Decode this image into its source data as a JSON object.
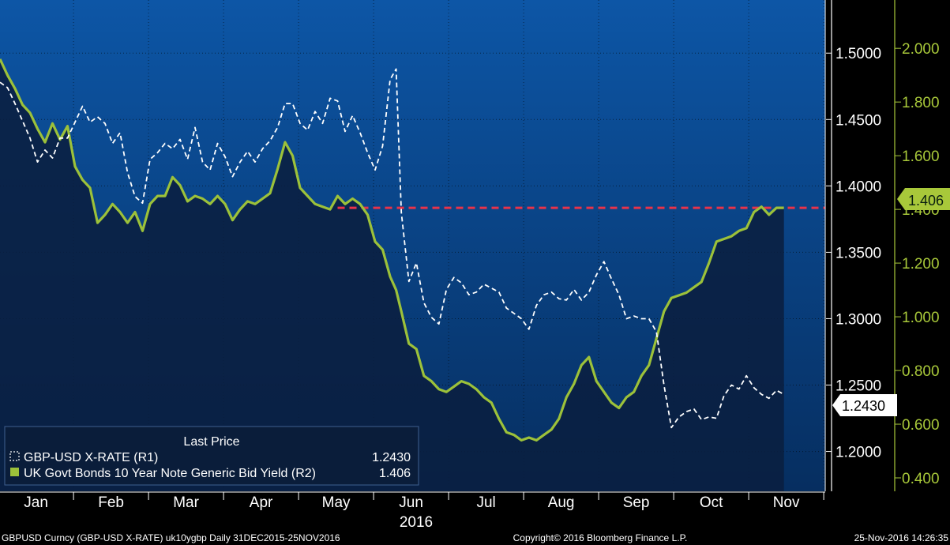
{
  "chart_data": {
    "type": "line",
    "period": "Daily 31DEC2015-25NOV2016",
    "year_label": "2016",
    "months": [
      "Jan",
      "Feb",
      "Mar",
      "Apr",
      "May",
      "Jun",
      "Jul",
      "Aug",
      "Sep",
      "Oct",
      "Nov"
    ],
    "left_axis": {
      "ticks": [
        "1.5000",
        "1.4500",
        "1.4000",
        "1.3500",
        "1.3000",
        "1.2500",
        "1.2000"
      ],
      "ylim": [
        1.17,
        1.54
      ]
    },
    "right_axis": {
      "ticks": [
        "2.000",
        "1.800",
        "1.600",
        "1.400",
        "1.200",
        "1.000",
        "0.800",
        "0.600",
        "0.400"
      ],
      "ylim": [
        0.35,
        2.18
      ]
    },
    "legend": {
      "header": "Last Price",
      "entries": [
        {
          "label": "GBP-USD X-RATE  (R1)",
          "value": "1.2430"
        },
        {
          "label": "UK Govt Bonds 10 Year Note Generic Bid Yield  (R2)",
          "value": "1.406"
        }
      ]
    },
    "last_value_tags": {
      "gbpusd": "1.2430",
      "yield": "1.406"
    },
    "reference_line": {
      "axis": "R2",
      "value": 1.406,
      "start_month": 4.5
    },
    "series": [
      {
        "id": "gbpusd",
        "name": "GBP-USD X-RATE  (R1)",
        "axis": "R1",
        "color": "#ffffff",
        "style": "dashed",
        "points": [
          [
            0.0,
            1.478
          ],
          [
            0.1,
            1.474
          ],
          [
            0.2,
            1.462
          ],
          [
            0.3,
            1.449
          ],
          [
            0.4,
            1.436
          ],
          [
            0.5,
            1.418
          ],
          [
            0.6,
            1.427
          ],
          [
            0.7,
            1.421
          ],
          [
            0.8,
            1.436
          ],
          [
            0.9,
            1.436
          ],
          [
            1.0,
            1.448
          ],
          [
            1.1,
            1.46
          ],
          [
            1.2,
            1.448
          ],
          [
            1.3,
            1.452
          ],
          [
            1.4,
            1.447
          ],
          [
            1.5,
            1.432
          ],
          [
            1.6,
            1.44
          ],
          [
            1.7,
            1.41
          ],
          [
            1.8,
            1.392
          ],
          [
            1.9,
            1.387
          ],
          [
            2.0,
            1.42
          ],
          [
            2.1,
            1.425
          ],
          [
            2.2,
            1.432
          ],
          [
            2.3,
            1.428
          ],
          [
            2.4,
            1.435
          ],
          [
            2.5,
            1.42
          ],
          [
            2.6,
            1.444
          ],
          [
            2.7,
            1.418
          ],
          [
            2.8,
            1.412
          ],
          [
            2.9,
            1.432
          ],
          [
            3.0,
            1.422
          ],
          [
            3.1,
            1.407
          ],
          [
            3.2,
            1.418
          ],
          [
            3.3,
            1.426
          ],
          [
            3.4,
            1.418
          ],
          [
            3.5,
            1.428
          ],
          [
            3.6,
            1.434
          ],
          [
            3.7,
            1.444
          ],
          [
            3.8,
            1.462
          ],
          [
            3.9,
            1.462
          ],
          [
            4.0,
            1.447
          ],
          [
            4.1,
            1.442
          ],
          [
            4.2,
            1.456
          ],
          [
            4.3,
            1.447
          ],
          [
            4.4,
            1.466
          ],
          [
            4.5,
            1.464
          ],
          [
            4.6,
            1.441
          ],
          [
            4.7,
            1.453
          ],
          [
            4.8,
            1.44
          ],
          [
            4.9,
            1.425
          ],
          [
            5.0,
            1.412
          ],
          [
            5.1,
            1.43
          ],
          [
            5.2,
            1.48
          ],
          [
            5.28,
            1.488
          ],
          [
            5.35,
            1.38
          ],
          [
            5.45,
            1.328
          ],
          [
            5.55,
            1.342
          ],
          [
            5.65,
            1.312
          ],
          [
            5.75,
            1.301
          ],
          [
            5.85,
            1.296
          ],
          [
            5.95,
            1.322
          ],
          [
            6.05,
            1.331
          ],
          [
            6.15,
            1.327
          ],
          [
            6.25,
            1.318
          ],
          [
            6.35,
            1.32
          ],
          [
            6.45,
            1.326
          ],
          [
            6.55,
            1.323
          ],
          [
            6.65,
            1.32
          ],
          [
            6.75,
            1.308
          ],
          [
            6.85,
            1.304
          ],
          [
            6.95,
            1.3
          ],
          [
            7.05,
            1.292
          ],
          [
            7.15,
            1.31
          ],
          [
            7.25,
            1.318
          ],
          [
            7.35,
            1.32
          ],
          [
            7.45,
            1.315
          ],
          [
            7.55,
            1.314
          ],
          [
            7.65,
            1.322
          ],
          [
            7.75,
            1.314
          ],
          [
            7.85,
            1.32
          ],
          [
            7.95,
            1.333
          ],
          [
            8.05,
            1.343
          ],
          [
            8.15,
            1.33
          ],
          [
            8.25,
            1.318
          ],
          [
            8.35,
            1.3
          ],
          [
            8.45,
            1.302
          ],
          [
            8.55,
            1.3
          ],
          [
            8.65,
            1.3
          ],
          [
            8.75,
            1.29
          ],
          [
            8.85,
            1.25
          ],
          [
            8.95,
            1.218
          ],
          [
            9.05,
            1.226
          ],
          [
            9.15,
            1.23
          ],
          [
            9.25,
            1.232
          ],
          [
            9.35,
            1.224
          ],
          [
            9.45,
            1.226
          ],
          [
            9.55,
            1.225
          ],
          [
            9.65,
            1.242
          ],
          [
            9.75,
            1.25
          ],
          [
            9.85,
            1.247
          ],
          [
            9.95,
            1.257
          ],
          [
            10.05,
            1.248
          ],
          [
            10.15,
            1.243
          ],
          [
            10.25,
            1.24
          ],
          [
            10.35,
            1.246
          ],
          [
            10.45,
            1.243
          ]
        ]
      },
      {
        "id": "yield",
        "name": "UK Govt Bonds 10 Year Note Generic Bid Yield  (R2)",
        "axis": "R2",
        "color": "#9cc13a",
        "style": "solid",
        "points": [
          [
            0.0,
            1.96
          ],
          [
            0.1,
            1.9
          ],
          [
            0.2,
            1.85
          ],
          [
            0.3,
            1.79
          ],
          [
            0.4,
            1.76
          ],
          [
            0.5,
            1.7
          ],
          [
            0.6,
            1.65
          ],
          [
            0.7,
            1.72
          ],
          [
            0.8,
            1.66
          ],
          [
            0.9,
            1.71
          ],
          [
            1.0,
            1.56
          ],
          [
            1.1,
            1.51
          ],
          [
            1.2,
            1.48
          ],
          [
            1.3,
            1.35
          ],
          [
            1.4,
            1.38
          ],
          [
            1.5,
            1.42
          ],
          [
            1.6,
            1.39
          ],
          [
            1.7,
            1.35
          ],
          [
            1.8,
            1.39
          ],
          [
            1.9,
            1.32
          ],
          [
            2.0,
            1.42
          ],
          [
            2.1,
            1.45
          ],
          [
            2.2,
            1.45
          ],
          [
            2.3,
            1.52
          ],
          [
            2.4,
            1.49
          ],
          [
            2.5,
            1.43
          ],
          [
            2.6,
            1.45
          ],
          [
            2.7,
            1.44
          ],
          [
            2.8,
            1.42
          ],
          [
            2.9,
            1.45
          ],
          [
            3.0,
            1.42
          ],
          [
            3.1,
            1.36
          ],
          [
            3.2,
            1.4
          ],
          [
            3.3,
            1.43
          ],
          [
            3.4,
            1.42
          ],
          [
            3.5,
            1.44
          ],
          [
            3.6,
            1.46
          ],
          [
            3.7,
            1.55
          ],
          [
            3.8,
            1.65
          ],
          [
            3.9,
            1.6
          ],
          [
            4.0,
            1.48
          ],
          [
            4.1,
            1.45
          ],
          [
            4.2,
            1.42
          ],
          [
            4.3,
            1.41
          ],
          [
            4.4,
            1.4
          ],
          [
            4.5,
            1.45
          ],
          [
            4.6,
            1.42
          ],
          [
            4.7,
            1.44
          ],
          [
            4.8,
            1.42
          ],
          [
            4.9,
            1.38
          ],
          [
            5.0,
            1.28
          ],
          [
            5.1,
            1.25
          ],
          [
            5.2,
            1.15
          ],
          [
            5.28,
            1.1
          ],
          [
            5.35,
            1.02
          ],
          [
            5.45,
            0.9
          ],
          [
            5.55,
            0.88
          ],
          [
            5.65,
            0.78
          ],
          [
            5.75,
            0.76
          ],
          [
            5.85,
            0.73
          ],
          [
            5.95,
            0.72
          ],
          [
            6.05,
            0.74
          ],
          [
            6.15,
            0.76
          ],
          [
            6.25,
            0.75
          ],
          [
            6.35,
            0.73
          ],
          [
            6.45,
            0.7
          ],
          [
            6.55,
            0.68
          ],
          [
            6.65,
            0.62
          ],
          [
            6.75,
            0.57
          ],
          [
            6.85,
            0.56
          ],
          [
            6.95,
            0.54
          ],
          [
            7.05,
            0.55
          ],
          [
            7.15,
            0.54
          ],
          [
            7.25,
            0.56
          ],
          [
            7.35,
            0.58
          ],
          [
            7.45,
            0.62
          ],
          [
            7.55,
            0.7
          ],
          [
            7.65,
            0.75
          ],
          [
            7.75,
            0.82
          ],
          [
            7.85,
            0.85
          ],
          [
            7.95,
            0.76
          ],
          [
            8.05,
            0.72
          ],
          [
            8.15,
            0.68
          ],
          [
            8.25,
            0.66
          ],
          [
            8.35,
            0.7
          ],
          [
            8.45,
            0.72
          ],
          [
            8.55,
            0.78
          ],
          [
            8.65,
            0.82
          ],
          [
            8.75,
            0.92
          ],
          [
            8.85,
            1.02
          ],
          [
            8.95,
            1.07
          ],
          [
            9.05,
            1.08
          ],
          [
            9.15,
            1.09
          ],
          [
            9.25,
            1.11
          ],
          [
            9.35,
            1.13
          ],
          [
            9.45,
            1.2
          ],
          [
            9.55,
            1.28
          ],
          [
            9.65,
            1.29
          ],
          [
            9.75,
            1.3
          ],
          [
            9.85,
            1.32
          ],
          [
            9.95,
            1.33
          ],
          [
            10.05,
            1.39
          ],
          [
            10.15,
            1.41
          ],
          [
            10.25,
            1.38
          ],
          [
            10.35,
            1.406
          ],
          [
            10.45,
            1.406
          ]
        ]
      }
    ]
  },
  "footer": {
    "left": "GBPUSD Curncy (GBP-USD X-RATE) uk10ygbp  Daily 31DEC2015-25NOV2016",
    "center": "Copyright© 2016 Bloomberg Finance L.P.",
    "right": "25-Nov-2016 14:26:35"
  }
}
